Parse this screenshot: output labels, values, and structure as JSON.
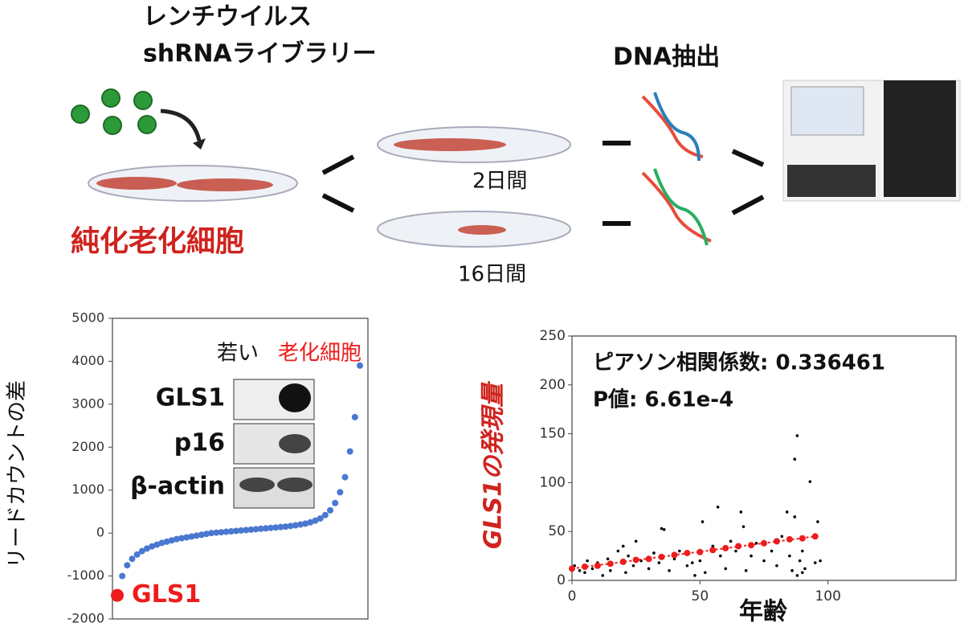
{
  "diagram": {
    "virus_label": [
      "レンチウイルス",
      "shRNAライブラリー"
    ],
    "extraction_label": "DNA抽出",
    "cells_label": "純化老化細胞",
    "durations": [
      "2日間",
      "16日間"
    ]
  },
  "chart_data": [
    {
      "type": "line",
      "y_label": "リードカウントの差",
      "color": "#4a78d0",
      "values": [
        -1450,
        -1000,
        -750,
        -600,
        -500,
        -420,
        -360,
        -310,
        -270,
        -230,
        -200,
        -170,
        -140,
        -120,
        -100,
        -80,
        -60,
        -40,
        -20,
        0,
        10,
        20,
        30,
        40,
        50,
        60,
        70,
        80,
        90,
        100,
        110,
        120,
        130,
        140,
        150,
        165,
        180,
        200,
        220,
        250,
        290,
        340,
        420,
        530,
        700,
        950,
        1300,
        1900,
        2700,
        3900
      ],
      "ylim": [
        -2000,
        5000
      ],
      "yticks": [
        -2000,
        -1000,
        0,
        1000,
        2000,
        3000,
        4000,
        5000
      ],
      "highlight": {
        "label": "GLS1",
        "value": -1450,
        "color": "#ee1c1c"
      },
      "inset": {
        "columns": [
          "若い",
          "老化細胞"
        ],
        "rows": [
          "GLS1",
          "p16",
          "β-actin"
        ]
      }
    },
    {
      "type": "scatter",
      "x_label": "年齢",
      "y_label": "GLS1の発現量",
      "annotations": [
        "ピアソン相関係数: 0.336461",
        "P値: 6.61e-4"
      ],
      "xlim": [
        0,
        150
      ],
      "xticks": [
        0,
        50,
        100
      ],
      "ylim": [
        0,
        250
      ],
      "yticks": [
        0,
        50,
        100,
        150,
        200,
        250
      ],
      "series": [
        {
          "color": "#000000",
          "x": [
            1,
            3,
            5,
            6,
            8,
            10,
            12,
            14,
            15,
            18,
            20,
            21,
            22,
            24,
            25,
            27,
            30,
            32,
            34,
            35,
            36,
            38,
            40,
            42,
            45,
            47,
            48,
            50,
            51,
            52,
            55,
            57,
            58,
            60,
            62,
            64,
            66,
            67,
            68,
            70,
            72,
            75,
            78,
            80,
            82,
            84,
            85,
            86,
            87,
            87,
            88,
            88,
            89,
            90,
            90,
            91,
            93,
            95,
            96,
            97
          ],
          "values": [
            15,
            10,
            8,
            20,
            12,
            18,
            5,
            22,
            10,
            30,
            35,
            8,
            25,
            15,
            40,
            20,
            12,
            28,
            18,
            53,
            52,
            10,
            22,
            30,
            15,
            18,
            5,
            20,
            60,
            8,
            35,
            75,
            25,
            12,
            40,
            30,
            70,
            55,
            10,
            25,
            38,
            20,
            30,
            15,
            45,
            70,
            25,
            10,
            124,
            65,
            148,
            5,
            20,
            8,
            30,
            12,
            101,
            18,
            60,
            20
          ]
        },
        {
          "color": "#ee1c1c",
          "x": [
            0,
            5,
            10,
            15,
            20,
            25,
            30,
            35,
            40,
            45,
            50,
            55,
            60,
            65,
            70,
            75,
            80,
            85,
            90,
            95
          ],
          "values": [
            12,
            14,
            15,
            17,
            19,
            21,
            22,
            24,
            26,
            28,
            29,
            31,
            33,
            35,
            36,
            38,
            40,
            42,
            43,
            45
          ]
        }
      ]
    }
  ]
}
